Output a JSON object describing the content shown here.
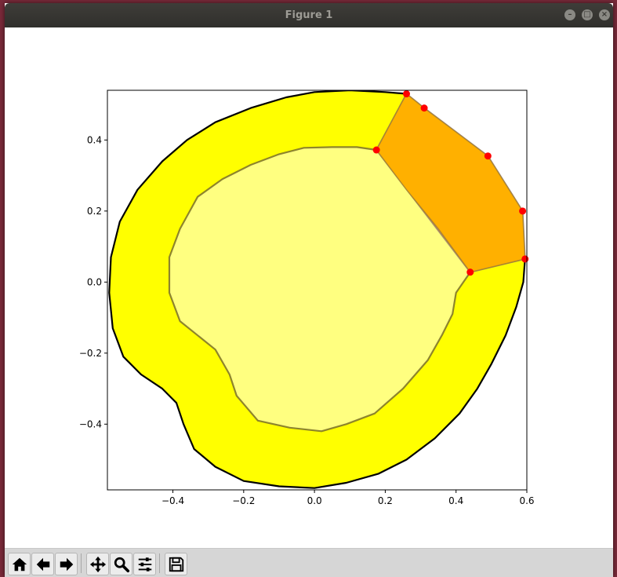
{
  "window": {
    "title": "Figure 1",
    "controls": [
      "minimize-icon",
      "maximize-icon",
      "close-icon"
    ]
  },
  "toolbar": {
    "buttons": [
      {
        "name": "home",
        "icon": "home-icon"
      },
      {
        "name": "back",
        "icon": "arrow-left-icon"
      },
      {
        "name": "forward",
        "icon": "arrow-right-icon"
      },
      {
        "name": "pan",
        "icon": "move-arrows-icon"
      },
      {
        "name": "zoom",
        "icon": "magnifier-icon"
      },
      {
        "name": "configure-subplots",
        "icon": "sliders-icon"
      },
      {
        "name": "save",
        "icon": "floppy-disk-icon"
      }
    ]
  },
  "chart_data": {
    "type": "area",
    "xlim": [
      -0.585,
      0.6
    ],
    "ylim": [
      -0.585,
      0.54
    ],
    "xticks": [
      -0.4,
      -0.2,
      0.0,
      0.2,
      0.4,
      0.6
    ],
    "yticks": [
      -0.4,
      -0.2,
      0.0,
      0.2,
      0.4
    ],
    "xtick_labels": [
      "−0.4",
      "−0.2",
      "0.0",
      "0.2",
      "0.4",
      "0.6"
    ],
    "ytick_labels": [
      "−0.4",
      "−0.2",
      "0.0",
      "0.2",
      "0.4"
    ],
    "grid": false,
    "colors": {
      "outer_fill": "#ffff00",
      "inner_fill": "#ffff80",
      "highlight_fill": "#ffb000",
      "hull_fill": "#ff9aa0",
      "points": "#ff0000"
    },
    "outer_boundary": [
      [
        0.26,
        0.53
      ],
      [
        0.2,
        0.535
      ],
      [
        0.1,
        0.54
      ],
      [
        0.0,
        0.535
      ],
      [
        -0.08,
        0.52
      ],
      [
        -0.18,
        0.49
      ],
      [
        -0.28,
        0.45
      ],
      [
        -0.36,
        0.4
      ],
      [
        -0.43,
        0.34
      ],
      [
        -0.5,
        0.26
      ],
      [
        -0.55,
        0.17
      ],
      [
        -0.575,
        0.07
      ],
      [
        -0.58,
        -0.03
      ],
      [
        -0.57,
        -0.13
      ],
      [
        -0.54,
        -0.21
      ],
      [
        -0.49,
        -0.26
      ],
      [
        -0.43,
        -0.3
      ],
      [
        -0.39,
        -0.34
      ],
      [
        -0.37,
        -0.4
      ],
      [
        -0.34,
        -0.47
      ],
      [
        -0.28,
        -0.52
      ],
      [
        -0.2,
        -0.56
      ],
      [
        -0.1,
        -0.575
      ],
      [
        0.0,
        -0.58
      ],
      [
        0.09,
        -0.565
      ],
      [
        0.18,
        -0.54
      ],
      [
        0.26,
        -0.5
      ],
      [
        0.34,
        -0.44
      ],
      [
        0.41,
        -0.37
      ],
      [
        0.46,
        -0.3
      ],
      [
        0.5,
        -0.23
      ],
      [
        0.54,
        -0.15
      ],
      [
        0.57,
        -0.07
      ],
      [
        0.59,
        0.0
      ],
      [
        0.595,
        0.065
      ]
    ],
    "inner_boundary": [
      [
        0.175,
        0.372
      ],
      [
        0.12,
        0.38
      ],
      [
        0.05,
        0.38
      ],
      [
        -0.03,
        0.378
      ],
      [
        -0.1,
        0.36
      ],
      [
        -0.18,
        0.33
      ],
      [
        -0.26,
        0.29
      ],
      [
        -0.33,
        0.24
      ],
      [
        -0.38,
        0.15
      ],
      [
        -0.41,
        0.07
      ],
      [
        -0.41,
        -0.03
      ],
      [
        -0.38,
        -0.11
      ],
      [
        -0.33,
        -0.15
      ],
      [
        -0.28,
        -0.19
      ],
      [
        -0.24,
        -0.26
      ],
      [
        -0.22,
        -0.32
      ],
      [
        -0.16,
        -0.39
      ],
      [
        -0.07,
        -0.41
      ],
      [
        0.02,
        -0.42
      ],
      [
        0.09,
        -0.4
      ],
      [
        0.17,
        -0.37
      ],
      [
        0.25,
        -0.3
      ],
      [
        0.32,
        -0.22
      ],
      [
        0.36,
        -0.15
      ],
      [
        0.39,
        -0.09
      ],
      [
        0.4,
        -0.03
      ],
      [
        0.44,
        0.028
      ]
    ],
    "highlight_region": [
      [
        0.26,
        0.53
      ],
      [
        0.175,
        0.372
      ],
      [
        0.26,
        0.26
      ],
      [
        0.35,
        0.15
      ],
      [
        0.44,
        0.028
      ],
      [
        0.595,
        0.065
      ],
      [
        0.588,
        0.2
      ],
      [
        0.49,
        0.355
      ],
      [
        0.31,
        0.49
      ]
    ],
    "hull_polygon": [
      [
        0.175,
        0.372
      ],
      [
        0.26,
        0.53
      ],
      [
        0.31,
        0.49
      ],
      [
        0.49,
        0.355
      ],
      [
        0.588,
        0.2
      ],
      [
        0.595,
        0.065
      ],
      [
        0.44,
        0.028
      ]
    ],
    "points": [
      [
        0.26,
        0.53
      ],
      [
        0.31,
        0.49
      ],
      [
        0.49,
        0.355
      ],
      [
        0.588,
        0.2
      ],
      [
        0.595,
        0.065
      ],
      [
        0.44,
        0.028
      ],
      [
        0.175,
        0.372
      ]
    ]
  }
}
